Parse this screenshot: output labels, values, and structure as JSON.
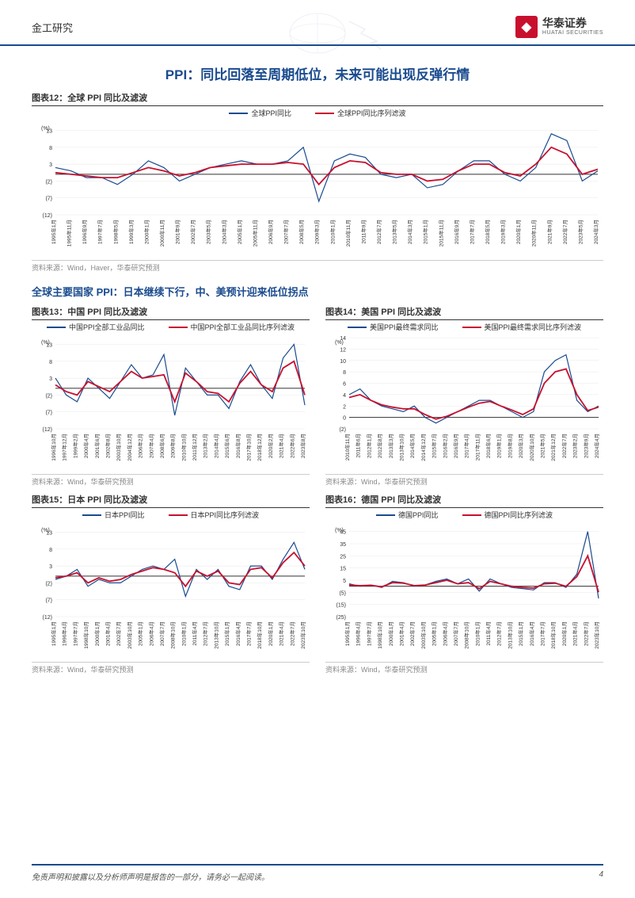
{
  "header": {
    "category": "金工研究",
    "company_cn": "华泰证券",
    "company_en": "HUATAI SECURITIES",
    "logo_char": "◆"
  },
  "main_title": "PPI：同比回落至周期低位，未来可能出现反弹行情",
  "sub_title": "全球主要国家 PPI：日本继续下行，中、美预计迎来低位拐点",
  "footer": {
    "disclaimer": "免责声明和披露以及分析师声明是报告的一部分，请务必一起阅读。",
    "page": "4"
  },
  "chart12": {
    "title": "图表12：全球 PPI 同比及滤波",
    "source": "资料来源：Wind，Haver，华泰研究预测",
    "legend1": "全球PPI同比",
    "legend2": "全球PPI同比序列滤波",
    "ylabel": "(%)",
    "color_raw": "#1a4b8e",
    "color_filter": "#c8102e",
    "ymin": -12,
    "ymax": 15,
    "ytick_step": 5,
    "xlabels": [
      "1995年1月",
      "1995年11月",
      "1996年9月",
      "1997年7月",
      "1998年5月",
      "1999年3月",
      "2000年1月",
      "2000年11月",
      "2001年9月",
      "2002年7月",
      "2003年5月",
      "2004年3月",
      "2005年1月",
      "2005年11月",
      "2006年9月",
      "2007年7月",
      "2008年5月",
      "2009年3月",
      "2010年1月",
      "2010年11月",
      "2011年9月",
      "2012年7月",
      "2013年5月",
      "2014年3月",
      "2015年1月",
      "2015年11月",
      "2016年9月",
      "2017年7月",
      "2018年5月",
      "2019年3月",
      "2020年1月",
      "2020年11月",
      "2021年9月",
      "2022年7月",
      "2023年5月",
      "2024年3月"
    ],
    "raw": [
      2,
      1,
      -1,
      -1,
      -3,
      0,
      4,
      2,
      -2,
      0,
      2,
      3,
      4,
      3,
      3,
      4,
      8,
      -8,
      4,
      6,
      5,
      0,
      -1,
      0,
      -4,
      -3,
      1,
      4,
      4,
      0,
      -2,
      2,
      12,
      10,
      -2,
      1
    ],
    "filter": [
      0.5,
      0,
      -0.5,
      -1,
      -1,
      0.5,
      2,
      1,
      -0.5,
      0.5,
      2,
      2.5,
      3,
      3,
      3,
      3.5,
      3,
      -3,
      2,
      4,
      3.5,
      0.5,
      0,
      0,
      -2,
      -1.5,
      1,
      3,
      3,
      0.5,
      -0.5,
      3,
      8,
      6,
      0,
      1.5
    ]
  },
  "chart13": {
    "title": "图表13：中国 PPI 同比及滤波",
    "source": "资料来源：Wind，华泰研究预测",
    "legend1": "中国PPI全部工业品同比",
    "legend2": "中国PPI全部工业品同比序列滤波",
    "ylabel": "(%)",
    "color_raw": "#1a4b8e",
    "color_filter": "#c8102e",
    "ymin": -12,
    "ymax": 15,
    "ytick_step": 5,
    "xlabels": [
      "1996年10月",
      "1997年12月",
      "1999年2月",
      "2000年4月",
      "2001年6月",
      "2002年8月",
      "2003年10月",
      "2004年12月",
      "2006年2月",
      "2007年4月",
      "2008年6月",
      "2009年8月",
      "2010年10月",
      "2011年12月",
      "2013年2月",
      "2014年4月",
      "2015年6月",
      "2016年8月",
      "2017年10月",
      "2018年12月",
      "2020年2月",
      "2021年4月",
      "2022年6月",
      "2023年8月"
    ],
    "raw": [
      3,
      -2,
      -4,
      3,
      0,
      -3,
      2,
      7,
      3,
      4,
      10,
      -8,
      6,
      2,
      -2,
      -2,
      -6,
      2,
      7,
      1,
      -3,
      9,
      13,
      -5
    ],
    "filter": [
      1,
      -1,
      -2,
      2,
      0.5,
      -1,
      2,
      5,
      3,
      3.5,
      4,
      -4,
      4.5,
      2,
      -1,
      -1.5,
      -4,
      1.5,
      5,
      1,
      -1,
      6,
      8,
      -2
    ]
  },
  "chart14": {
    "title": "图表14：美国 PPI 同比及滤波",
    "source": "资料来源：Wind，华泰研究预测",
    "legend1": "美国PPI最终需求同比",
    "legend2": "美国PPI最终需求同比序列滤波",
    "ylabel": "(%)",
    "color_raw": "#1a4b8e",
    "color_filter": "#c8102e",
    "ymin": -2,
    "ymax": 14,
    "ytick_step": 2,
    "xlabels": [
      "2010年11月",
      "2011年6月",
      "2012年1月",
      "2012年8月",
      "2013年3月",
      "2013年10月",
      "2014年5月",
      "2014年12月",
      "2015年7月",
      "2016年2月",
      "2016年9月",
      "2017年4月",
      "2017年11月",
      "2018年6月",
      "2019年1月",
      "2019年8月",
      "2020年3月",
      "2020年10月",
      "2021年5月",
      "2021年12月",
      "2022年7月",
      "2023年2月",
      "2023年9月",
      "2024年4月"
    ],
    "raw": [
      4,
      5,
      3,
      2,
      1.5,
      1,
      2,
      0,
      -1,
      0,
      1,
      2,
      3,
      3,
      2,
      1,
      0,
      1,
      8,
      10,
      11,
      3,
      1,
      2
    ],
    "filter": [
      3.5,
      4,
      3,
      2.2,
      1.8,
      1.5,
      1.5,
      0.5,
      -0.3,
      0.2,
      1,
      1.8,
      2.5,
      2.8,
      2,
      1.3,
      0.5,
      1.5,
      6,
      8,
      8.5,
      4,
      1.2,
      1.8
    ]
  },
  "chart15": {
    "title": "图表15：日本 PPI 同比及滤波",
    "source": "资料来源：Wind，华泰研究预测",
    "legend1": "日本PPI同比",
    "legend2": "日本PPI同比序列滤波",
    "ylabel": "(%)",
    "color_raw": "#1a4b8e",
    "color_filter": "#c8102e",
    "ymin": -12,
    "ymax": 15,
    "ytick_step": 5,
    "xlabels": [
      "1995年1月",
      "1996年4月",
      "1997年7月",
      "1998年10月",
      "2000年1月",
      "2001年4月",
      "2002年7月",
      "2003年10月",
      "2005年1月",
      "2006年4月",
      "2007年7月",
      "2008年10月",
      "2010年1月",
      "2011年4月",
      "2012年7月",
      "2013年10月",
      "2015年1月",
      "2016年4月",
      "2017年7月",
      "2018年10月",
      "2020年1月",
      "2021年4月",
      "2022年7月",
      "2023年10月"
    ],
    "raw": [
      -1,
      0,
      2,
      -3,
      -1,
      -2,
      -2,
      0,
      2,
      3,
      2,
      5,
      -6,
      2,
      -1,
      2,
      -3,
      -4,
      3,
      3,
      -1,
      5,
      10,
      2
    ],
    "filter": [
      -0.5,
      0,
      1,
      -2,
      -0.5,
      -1.5,
      -1,
      0.5,
      1.5,
      2.5,
      2,
      1,
      -3,
      1.5,
      0,
      1.5,
      -2,
      -2.5,
      2,
      2.5,
      -0.5,
      4,
      7,
      3
    ]
  },
  "chart16": {
    "title": "图表16：德国 PPI 同比及滤波",
    "source": "资料来源：Wind，华泰研究预测",
    "legend1": "德国PPI同比",
    "legend2": "德国PPI同比序列滤波",
    "ylabel": "(%)",
    "color_raw": "#1a4b8e",
    "color_filter": "#c8102e",
    "ymin": -25,
    "ymax": 50,
    "ytick_step": 10,
    "xlabels": [
      "1995年1月",
      "1996年4月",
      "1997年7月",
      "1998年10月",
      "2000年1月",
      "2001年4月",
      "2002年7月",
      "2003年10月",
      "2005年1月",
      "2006年4月",
      "2007年7月",
      "2008年10月",
      "2010年1月",
      "2011年4月",
      "2012年7月",
      "2013年10月",
      "2015年1月",
      "2016年4月",
      "2017年7月",
      "2018年10月",
      "2020年1月",
      "2021年4月",
      "2022年7月",
      "2023年10月"
    ],
    "raw": [
      2,
      0,
      1,
      -1,
      4,
      3,
      0,
      1,
      4,
      6,
      2,
      6,
      -4,
      6,
      2,
      -1,
      -2,
      -3,
      3,
      3,
      -1,
      10,
      45,
      -10
    ],
    "filter": [
      1,
      0.5,
      0.8,
      -0.5,
      3,
      2.5,
      0.5,
      1,
      3,
      5,
      2,
      3,
      -2,
      4,
      2,
      0,
      -1,
      -1.5,
      2,
      2.5,
      0,
      8,
      25,
      -5
    ]
  }
}
